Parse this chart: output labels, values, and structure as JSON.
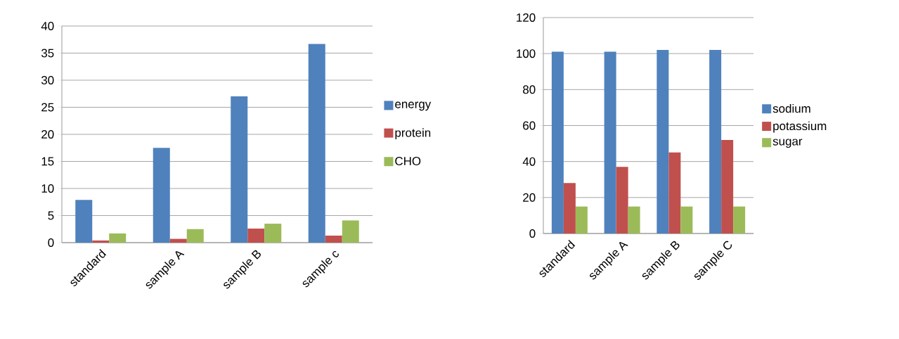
{
  "chart_data": [
    {
      "type": "bar",
      "categories": [
        "standard",
        "sample A",
        "sample B",
        "sample c"
      ],
      "series": [
        {
          "name": "energy",
          "color": "#4f81bd",
          "values": [
            7.9,
            17.5,
            27,
            36.7
          ]
        },
        {
          "name": "protein",
          "color": "#c0504d",
          "values": [
            0.4,
            0.7,
            2.6,
            1.3
          ]
        },
        {
          "name": "CHO",
          "color": "#9bbb59",
          "values": [
            1.7,
            2.5,
            3.5,
            4.1
          ]
        }
      ],
      "ylim": [
        0,
        40
      ],
      "yticks": [
        0,
        5,
        10,
        15,
        20,
        25,
        30,
        35,
        40
      ],
      "grid": "y",
      "legend": "right"
    },
    {
      "type": "bar",
      "categories": [
        "standard",
        "sample A",
        "sample B",
        "sample C"
      ],
      "series": [
        {
          "name": "sodium",
          "color": "#4f81bd",
          "values": [
            101,
            101,
            102,
            102
          ]
        },
        {
          "name": "potassium",
          "color": "#c0504d",
          "values": [
            28,
            37,
            45,
            52
          ]
        },
        {
          "name": "sugar",
          "color": "#9bbb59",
          "values": [
            15,
            15,
            15,
            15
          ]
        }
      ],
      "ylim": [
        0,
        120
      ],
      "yticks": [
        0,
        20,
        40,
        60,
        80,
        100,
        120
      ],
      "grid": "y",
      "legend": "right"
    }
  ]
}
